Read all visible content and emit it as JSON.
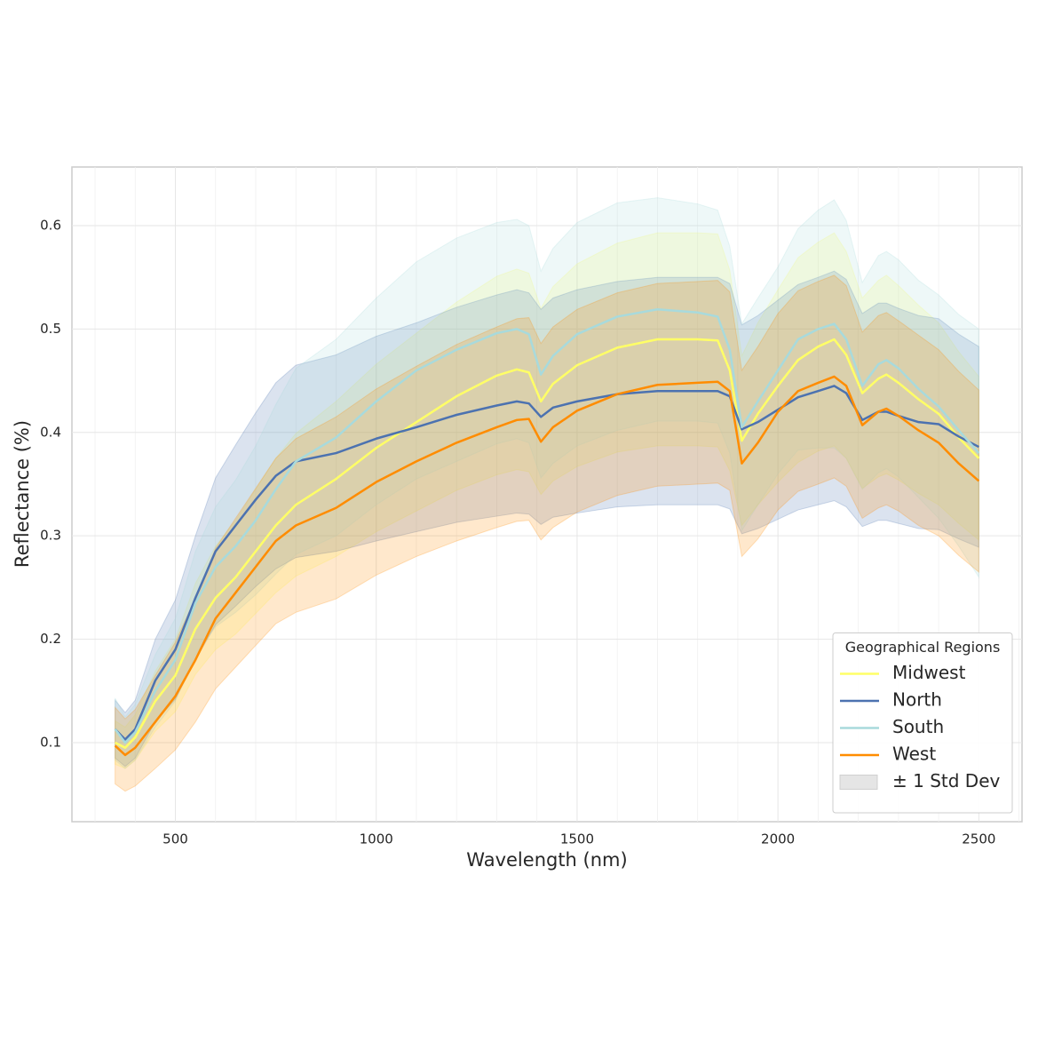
{
  "chart_data": {
    "type": "line",
    "x_label": "Wavelength (nm)",
    "y_label": "Reflectance (%)",
    "x": [
      350,
      375,
      400,
      450,
      500,
      550,
      600,
      650,
      700,
      750,
      800,
      900,
      1000,
      1100,
      1200,
      1300,
      1350,
      1380,
      1410,
      1440,
      1500,
      1600,
      1700,
      1800,
      1850,
      1880,
      1910,
      1950,
      2000,
      2050,
      2100,
      2140,
      2170,
      2210,
      2250,
      2270,
      2300,
      2350,
      2400,
      2450,
      2500
    ],
    "series": [
      {
        "name": "Midwest",
        "color": "#ffff66",
        "values": [
          0.1,
          0.095,
          0.105,
          0.14,
          0.165,
          0.21,
          0.24,
          0.26,
          0.285,
          0.31,
          0.33,
          0.355,
          0.385,
          0.41,
          0.435,
          0.455,
          0.461,
          0.458,
          0.43,
          0.447,
          0.465,
          0.482,
          0.49,
          0.49,
          0.489,
          0.46,
          0.392,
          0.418,
          0.445,
          0.47,
          0.483,
          0.49,
          0.475,
          0.438,
          0.452,
          0.456,
          0.448,
          0.432,
          0.418,
          0.395,
          0.375
        ],
        "std": [
          0.021,
          0.02,
          0.022,
          0.029,
          0.035,
          0.044,
          0.05,
          0.055,
          0.06,
          0.065,
          0.069,
          0.075,
          0.081,
          0.086,
          0.091,
          0.096,
          0.097,
          0.096,
          0.09,
          0.094,
          0.098,
          0.101,
          0.103,
          0.103,
          0.103,
          0.097,
          0.082,
          0.088,
          0.093,
          0.099,
          0.101,
          0.103,
          0.1,
          0.092,
          0.095,
          0.096,
          0.094,
          0.091,
          0.088,
          0.083,
          0.079
        ]
      },
      {
        "name": "North",
        "color": "#4c72b0",
        "values": [
          0.113,
          0.103,
          0.113,
          0.16,
          0.19,
          0.24,
          0.285,
          0.31,
          0.335,
          0.358,
          0.372,
          0.38,
          0.394,
          0.405,
          0.417,
          0.426,
          0.43,
          0.428,
          0.415,
          0.424,
          0.43,
          0.437,
          0.44,
          0.44,
          0.44,
          0.435,
          0.403,
          0.41,
          0.422,
          0.434,
          0.44,
          0.445,
          0.438,
          0.412,
          0.42,
          0.42,
          0.416,
          0.41,
          0.408,
          0.396,
          0.386
        ],
        "std": [
          0.028,
          0.026,
          0.028,
          0.04,
          0.048,
          0.06,
          0.071,
          0.078,
          0.084,
          0.09,
          0.093,
          0.095,
          0.099,
          0.101,
          0.104,
          0.107,
          0.108,
          0.107,
          0.104,
          0.106,
          0.108,
          0.109,
          0.11,
          0.11,
          0.11,
          0.109,
          0.101,
          0.103,
          0.106,
          0.109,
          0.11,
          0.111,
          0.11,
          0.103,
          0.105,
          0.105,
          0.104,
          0.103,
          0.102,
          0.099,
          0.097
        ]
      },
      {
        "name": "South",
        "color": "#a8dadc",
        "values": [
          0.113,
          0.1,
          0.11,
          0.15,
          0.18,
          0.235,
          0.27,
          0.29,
          0.315,
          0.345,
          0.372,
          0.395,
          0.43,
          0.46,
          0.48,
          0.496,
          0.5,
          0.495,
          0.456,
          0.474,
          0.495,
          0.512,
          0.519,
          0.516,
          0.512,
          0.48,
          0.405,
          0.43,
          0.46,
          0.49,
          0.5,
          0.505,
          0.49,
          0.445,
          0.466,
          0.47,
          0.462,
          0.442,
          0.425,
          0.402,
          0.38
        ],
        "std": [
          0.03,
          0.025,
          0.027,
          0.035,
          0.04,
          0.05,
          0.058,
          0.064,
          0.072,
          0.082,
          0.09,
          0.095,
          0.1,
          0.105,
          0.108,
          0.107,
          0.106,
          0.105,
          0.1,
          0.104,
          0.108,
          0.11,
          0.108,
          0.105,
          0.103,
          0.1,
          0.1,
          0.1,
          0.1,
          0.107,
          0.115,
          0.12,
          0.115,
          0.1,
          0.105,
          0.105,
          0.105,
          0.105,
          0.108,
          0.112,
          0.12
        ]
      },
      {
        "name": "West",
        "color": "#ff8c00",
        "values": [
          0.097,
          0.088,
          0.095,
          0.12,
          0.145,
          0.18,
          0.22,
          0.245,
          0.27,
          0.295,
          0.31,
          0.327,
          0.352,
          0.372,
          0.39,
          0.405,
          0.412,
          0.413,
          0.391,
          0.405,
          0.421,
          0.437,
          0.446,
          0.448,
          0.449,
          0.44,
          0.37,
          0.39,
          0.42,
          0.44,
          0.448,
          0.454,
          0.445,
          0.407,
          0.42,
          0.423,
          0.416,
          0.402,
          0.39,
          0.37,
          0.353
        ],
        "std": [
          0.037,
          0.035,
          0.037,
          0.045,
          0.052,
          0.06,
          0.068,
          0.072,
          0.076,
          0.08,
          0.084,
          0.088,
          0.09,
          0.092,
          0.095,
          0.097,
          0.098,
          0.098,
          0.095,
          0.097,
          0.098,
          0.098,
          0.098,
          0.098,
          0.098,
          0.096,
          0.09,
          0.093,
          0.095,
          0.097,
          0.098,
          0.098,
          0.097,
          0.09,
          0.093,
          0.093,
          0.092,
          0.092,
          0.09,
          0.089,
          0.088
        ]
      }
    ],
    "band_label": "± 1 Std Dev",
    "band_color": "#e5e5e5",
    "legend_title": "Geographical Regions",
    "legend_loc": "lower right",
    "xlim": [
      242.5,
      2607.5
    ],
    "xticks": [
      500,
      1000,
      1500,
      2000,
      2500
    ],
    "xminorticks": [
      300,
      400,
      600,
      700,
      800,
      900,
      1100,
      1200,
      1300,
      1400,
      1600,
      1700,
      1800,
      1900,
      2100,
      2200,
      2300,
      2400,
      2600
    ],
    "ylim": [
      0.0235,
      0.6567
    ],
    "yticks": [
      0.1,
      0.2,
      0.3,
      0.4,
      0.5,
      0.6
    ],
    "grid": true
  }
}
